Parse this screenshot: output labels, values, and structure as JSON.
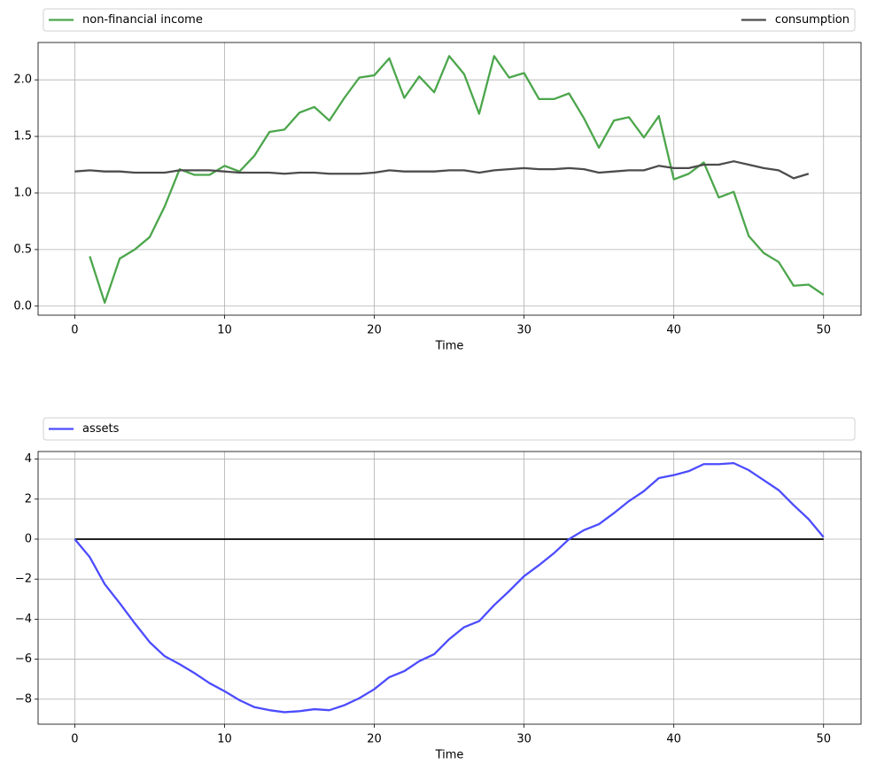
{
  "chart_data": [
    {
      "type": "line",
      "xlabel": "Time",
      "grid": true,
      "legend": "above-expand",
      "xlim": [
        -2.45,
        52.5
      ],
      "xticks": [
        0,
        10,
        20,
        30,
        40,
        50
      ],
      "ylim": [
        -0.08,
        2.33
      ],
      "yticks": [
        {
          "value": 0,
          "label": "0.0"
        },
        0.5,
        {
          "value": 1,
          "label": "1.0"
        },
        1.5,
        {
          "value": 2,
          "label": "2.0"
        }
      ],
      "series": [
        {
          "name": "non-financial income",
          "color": "#4ca64c",
          "x": [
            1,
            2,
            3,
            4,
            5,
            6,
            7,
            8,
            9,
            10,
            11,
            12,
            13,
            14,
            15,
            16,
            17,
            18,
            19,
            20,
            21,
            22,
            23,
            24,
            25,
            26,
            27,
            28,
            29,
            30,
            31,
            32,
            33,
            34,
            35,
            36,
            37,
            38,
            39,
            40,
            41,
            42,
            43,
            44,
            45,
            46,
            47,
            48,
            49,
            50
          ],
          "values": [
            0.44,
            0.03,
            0.42,
            0.5,
            0.61,
            0.88,
            1.21,
            1.16,
            1.16,
            1.24,
            1.19,
            1.33,
            1.54,
            1.56,
            1.71,
            1.76,
            1.64,
            1.84,
            2.02,
            2.04,
            2.19,
            1.84,
            2.03,
            1.89,
            2.21,
            2.05,
            1.7,
            2.21,
            2.02,
            2.06,
            1.83,
            1.83,
            1.88,
            1.66,
            1.4,
            1.64,
            1.67,
            1.49,
            1.68,
            1.12,
            1.17,
            1.27,
            0.96,
            1.01,
            0.62,
            0.47,
            0.39,
            0.18,
            0.19,
            0.1
          ]
        },
        {
          "name": "consumption",
          "color": "#4c4c4c",
          "x": [
            0,
            1,
            2,
            3,
            4,
            5,
            6,
            7,
            8,
            9,
            10,
            11,
            12,
            13,
            14,
            15,
            16,
            17,
            18,
            19,
            20,
            21,
            22,
            23,
            24,
            25,
            26,
            27,
            28,
            29,
            30,
            31,
            32,
            33,
            34,
            35,
            36,
            37,
            38,
            39,
            40,
            41,
            42,
            43,
            44,
            45,
            46,
            47,
            48,
            49
          ],
          "values": [
            1.19,
            1.2,
            1.19,
            1.19,
            1.18,
            1.18,
            1.18,
            1.2,
            1.2,
            1.2,
            1.19,
            1.18,
            1.18,
            1.18,
            1.17,
            1.18,
            1.18,
            1.17,
            1.17,
            1.17,
            1.18,
            1.2,
            1.19,
            1.19,
            1.19,
            1.2,
            1.2,
            1.18,
            1.2,
            1.21,
            1.22,
            1.21,
            1.21,
            1.22,
            1.21,
            1.18,
            1.19,
            1.2,
            1.2,
            1.24,
            1.22,
            1.22,
            1.25,
            1.25,
            1.28,
            1.25,
            1.22,
            1.2,
            1.13,
            1.17
          ]
        }
      ]
    },
    {
      "type": "line",
      "xlabel": "Time",
      "grid": true,
      "legend": "above-expand",
      "xlim": [
        -2.45,
        52.5
      ],
      "xticks": [
        0,
        10,
        20,
        30,
        40,
        50
      ],
      "ylim": [
        -9.25,
        4.38
      ],
      "yticks": [
        {
          "value": -8,
          "label": "−8"
        },
        {
          "value": -6,
          "label": "−6"
        },
        {
          "value": -4,
          "label": "−4"
        },
        {
          "value": -2,
          "label": "−2"
        },
        0,
        2,
        4
      ],
      "hlines": [
        0
      ],
      "series": [
        {
          "name": "assets",
          "color": "#4c4cff",
          "x": [
            0,
            1,
            2,
            3,
            4,
            5,
            6,
            7,
            8,
            9,
            10,
            11,
            12,
            13,
            14,
            15,
            16,
            17,
            18,
            19,
            20,
            21,
            22,
            23,
            24,
            25,
            26,
            27,
            28,
            29,
            30,
            31,
            32,
            33,
            34,
            35,
            36,
            37,
            38,
            39,
            40,
            41,
            42,
            43,
            44,
            45,
            46,
            47,
            48,
            49,
            50
          ],
          "values": [
            0,
            -0.9,
            -2.25,
            -3.2,
            -4.2,
            -5.15,
            -5.85,
            -6.25,
            -6.7,
            -7.2,
            -7.6,
            -8.05,
            -8.4,
            -8.55,
            -8.65,
            -8.6,
            -8.5,
            -8.55,
            -8.3,
            -7.95,
            -7.5,
            -6.9,
            -6.6,
            -6.1,
            -5.75,
            -5.0,
            -4.4,
            -4.1,
            -3.3,
            -2.6,
            -1.85,
            -1.3,
            -0.7,
            0,
            0.45,
            0.75,
            1.3,
            1.9,
            2.4,
            3.05,
            3.2,
            3.4,
            3.75,
            3.75,
            3.8,
            3.45,
            2.95,
            2.45,
            1.7,
            1.0,
            0.1
          ]
        }
      ]
    }
  ]
}
